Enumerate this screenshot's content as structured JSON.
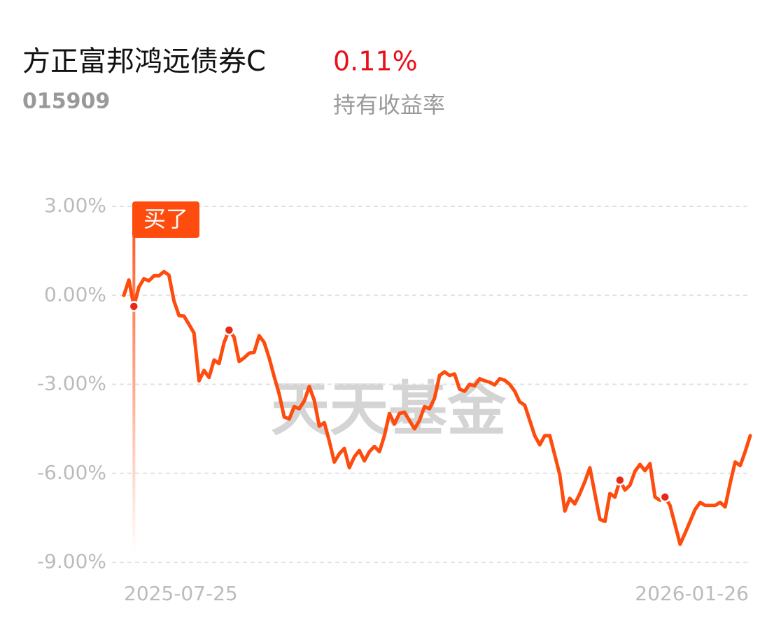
{
  "chart_data": {
    "type": "line",
    "title": "方正富邦鸿远债券C",
    "code": "015909",
    "return_value": "0.11%",
    "return_label": "持有收益率",
    "watermark": "天天基金",
    "buy_label": "买了",
    "color": "#fe4c0e",
    "ylim": [
      -9,
      3
    ],
    "yticks": [
      {
        "value": 3,
        "label": "3.00%"
      },
      {
        "value": 0,
        "label": "0.00%"
      },
      {
        "value": -3,
        "label": "-3.00%"
      },
      {
        "value": -6,
        "label": "-6.00%"
      },
      {
        "value": -9,
        "label": "-9.00%"
      }
    ],
    "grid": true,
    "categories": [
      "2025-07-25",
      null,
      null,
      null,
      null,
      null,
      null,
      null,
      null,
      null,
      null,
      null,
      null,
      null,
      null,
      null,
      null,
      null,
      null,
      null,
      null,
      null,
      null,
      null,
      null,
      null,
      null,
      null,
      null,
      null,
      null,
      null,
      null,
      null,
      null,
      null,
      null,
      null,
      null,
      null,
      null,
      null,
      null,
      null,
      null,
      null,
      null,
      null,
      null,
      null,
      null,
      null,
      null,
      null,
      null,
      null,
      null,
      null,
      null,
      null,
      null,
      null,
      null,
      null,
      null,
      null,
      null,
      null,
      null,
      null,
      null,
      null,
      null,
      null,
      null,
      null,
      null,
      null,
      null,
      null,
      null,
      null,
      null,
      null,
      null,
      null,
      null,
      null,
      null,
      null,
      null,
      null,
      null,
      null,
      null,
      null,
      null,
      null,
      null,
      null,
      null,
      null,
      null,
      null,
      null,
      null,
      null,
      null,
      null,
      null,
      null,
      null,
      null,
      null,
      null,
      null,
      null,
      null,
      null,
      null,
      null,
      null,
      null,
      null,
      null,
      "2026-01-26"
    ],
    "values": [
      0,
      0.52,
      -0.37,
      0.28,
      0.56,
      0.49,
      0.66,
      0.66,
      0.8,
      0.68,
      -0.19,
      -0.68,
      -0.7,
      -0.98,
      -1.27,
      -2.88,
      -2.53,
      -2.77,
      -2.18,
      -2.3,
      -1.59,
      -1.17,
      -1.41,
      -2.23,
      -2.11,
      -1.95,
      -1.92,
      -1.36,
      -1.59,
      -2.11,
      -2.74,
      -3.33,
      -4.1,
      -4.17,
      -3.75,
      -3.82,
      -3.56,
      -3.07,
      -3.54,
      -4.41,
      -4.29,
      -4.92,
      -5.62,
      -5.34,
      -5.16,
      -5.81,
      -5.44,
      -5.23,
      -5.58,
      -5.27,
      -5.09,
      -5.27,
      -4.73,
      -3.98,
      -4.34,
      -3.98,
      -3.94,
      -4.22,
      -4.5,
      -4.22,
      -3.75,
      -3.82,
      -3.47,
      -2.7,
      -2.58,
      -2.7,
      -2.65,
      -3.16,
      -3.23,
      -3.0,
      -3.05,
      -2.81,
      -2.88,
      -2.93,
      -3.02,
      -2.81,
      -2.86,
      -3.0,
      -3.23,
      -3.59,
      -3.7,
      -4.22,
      -4.73,
      -5.04,
      -4.73,
      -4.73,
      -5.39,
      -6.05,
      -7.27,
      -6.84,
      -7.03,
      -6.68,
      -6.28,
      -5.81,
      -6.68,
      -7.55,
      -7.62,
      -6.68,
      -6.8,
      -6.23,
      -6.56,
      -6.4,
      -5.93,
      -5.7,
      -5.91,
      -5.67,
      -6.8,
      -6.91,
      -6.8,
      -7.08,
      -7.73,
      -8.39,
      -8.02,
      -7.62,
      -7.22,
      -6.98,
      -7.08,
      -7.08,
      -7.08,
      -6.98,
      -7.13,
      -6.33,
      -5.62,
      -5.74,
      -5.27,
      -4.73
    ]
  }
}
